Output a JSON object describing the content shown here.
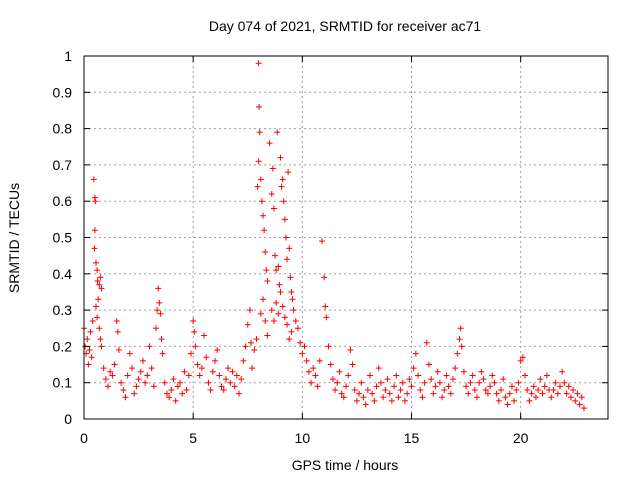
{
  "chart_data": {
    "type": "scatter",
    "title": "Day 074 of 2021, SRMTID for receiver ac71",
    "xlabel": "GPS time / hours",
    "ylabel": "SRMTID / TECUs",
    "xlim": [
      0,
      24
    ],
    "ylim": [
      0,
      1
    ],
    "x_ticks": [
      0,
      5,
      10,
      15,
      20
    ],
    "x_tick_labels": [
      "0",
      "5",
      "10",
      "15",
      "20"
    ],
    "y_ticks": [
      0,
      0.1,
      0.2,
      0.3,
      0.4,
      0.5,
      0.6,
      0.7,
      0.8,
      0.9,
      1
    ],
    "y_tick_labels": [
      "0",
      "0.1",
      "0.2",
      "0.3",
      "0.4",
      "0.5",
      "0.6",
      "0.7",
      "0.8",
      "0.9",
      "1"
    ],
    "grid": true,
    "marker": "+",
    "color": "#ff0000",
    "series": [
      {
        "name": "SRMTID",
        "points": [
          [
            0.0,
            0.25
          ],
          [
            0.05,
            0.2
          ],
          [
            0.1,
            0.18
          ],
          [
            0.15,
            0.22
          ],
          [
            0.2,
            0.15
          ],
          [
            0.25,
            0.19
          ],
          [
            0.3,
            0.24
          ],
          [
            0.35,
            0.17
          ],
          [
            0.4,
            0.27
          ],
          [
            0.45,
            0.66
          ],
          [
            0.5,
            0.61
          ],
          [
            0.52,
            0.6
          ],
          [
            0.5,
            0.52
          ],
          [
            0.48,
            0.47
          ],
          [
            0.55,
            0.43
          ],
          [
            0.6,
            0.41
          ],
          [
            0.62,
            0.38
          ],
          [
            0.7,
            0.37
          ],
          [
            0.75,
            0.39
          ],
          [
            0.8,
            0.36
          ],
          [
            0.55,
            0.31
          ],
          [
            0.6,
            0.28
          ],
          [
            0.65,
            0.33
          ],
          [
            0.7,
            0.25
          ],
          [
            0.75,
            0.22
          ],
          [
            0.8,
            0.2
          ],
          [
            0.9,
            0.14
          ],
          [
            1.0,
            0.11
          ],
          [
            1.1,
            0.09
          ],
          [
            1.2,
            0.13
          ],
          [
            1.3,
            0.12
          ],
          [
            1.4,
            0.15
          ],
          [
            1.5,
            0.27
          ],
          [
            1.55,
            0.24
          ],
          [
            1.6,
            0.19
          ],
          [
            1.7,
            0.1
          ],
          [
            1.8,
            0.08
          ],
          [
            1.9,
            0.06
          ],
          [
            2.0,
            0.12
          ],
          [
            2.1,
            0.18
          ],
          [
            2.2,
            0.14
          ],
          [
            2.3,
            0.07
          ],
          [
            2.4,
            0.09
          ],
          [
            2.5,
            0.11
          ],
          [
            2.6,
            0.13
          ],
          [
            2.7,
            0.16
          ],
          [
            2.8,
            0.1
          ],
          [
            2.9,
            0.12
          ],
          [
            3.0,
            0.2
          ],
          [
            3.1,
            0.14
          ],
          [
            3.2,
            0.09
          ],
          [
            3.3,
            0.25
          ],
          [
            3.35,
            0.3
          ],
          [
            3.4,
            0.36
          ],
          [
            3.45,
            0.32
          ],
          [
            3.5,
            0.29
          ],
          [
            3.55,
            0.22
          ],
          [
            3.6,
            0.18
          ],
          [
            3.7,
            0.1
          ],
          [
            3.8,
            0.07
          ],
          [
            3.9,
            0.06
          ],
          [
            4.0,
            0.08
          ],
          [
            4.1,
            0.11
          ],
          [
            4.2,
            0.05
          ],
          [
            4.3,
            0.09
          ],
          [
            4.4,
            0.1
          ],
          [
            4.5,
            0.07
          ],
          [
            4.6,
            0.13
          ],
          [
            4.7,
            0.08
          ],
          [
            4.8,
            0.12
          ],
          [
            4.9,
            0.18
          ],
          [
            5.0,
            0.27
          ],
          [
            5.05,
            0.24
          ],
          [
            5.1,
            0.2
          ],
          [
            5.2,
            0.15
          ],
          [
            5.3,
            0.12
          ],
          [
            5.4,
            0.14
          ],
          [
            5.5,
            0.23
          ],
          [
            5.6,
            0.17
          ],
          [
            5.7,
            0.1
          ],
          [
            5.8,
            0.08
          ],
          [
            5.9,
            0.13
          ],
          [
            6.0,
            0.16
          ],
          [
            6.1,
            0.19
          ],
          [
            6.2,
            0.12
          ],
          [
            6.3,
            0.09
          ],
          [
            6.4,
            0.08
          ],
          [
            6.5,
            0.11
          ],
          [
            6.6,
            0.14
          ],
          [
            6.7,
            0.1
          ],
          [
            6.8,
            0.13
          ],
          [
            6.9,
            0.09
          ],
          [
            7.0,
            0.12
          ],
          [
            7.1,
            0.07
          ],
          [
            7.2,
            0.11
          ],
          [
            7.3,
            0.16
          ],
          [
            7.4,
            0.2
          ],
          [
            7.5,
            0.26
          ],
          [
            7.6,
            0.3
          ],
          [
            7.65,
            0.21
          ],
          [
            7.7,
            0.14
          ],
          [
            7.8,
            0.19
          ],
          [
            7.9,
            0.22
          ],
          [
            7.95,
            0.64
          ],
          [
            8.0,
            0.71
          ],
          [
            8.0,
            0.98
          ],
          [
            8.02,
            0.86
          ],
          [
            8.05,
            0.79
          ],
          [
            8.1,
            0.66
          ],
          [
            8.15,
            0.6
          ],
          [
            8.2,
            0.56
          ],
          [
            8.25,
            0.52
          ],
          [
            8.3,
            0.46
          ],
          [
            8.35,
            0.41
          ],
          [
            8.4,
            0.38
          ],
          [
            8.1,
            0.29
          ],
          [
            8.2,
            0.33
          ],
          [
            8.3,
            0.27
          ],
          [
            8.4,
            0.23
          ],
          [
            8.5,
            0.76
          ],
          [
            8.6,
            0.62
          ],
          [
            8.65,
            0.69
          ],
          [
            8.7,
            0.58
          ],
          [
            8.75,
            0.45
          ],
          [
            8.8,
            0.41
          ],
          [
            8.85,
            0.79
          ],
          [
            8.9,
            0.42
          ],
          [
            8.95,
            0.37
          ],
          [
            9.0,
            0.72
          ],
          [
            9.05,
            0.64
          ],
          [
            9.1,
            0.66
          ],
          [
            9.15,
            0.6
          ],
          [
            9.2,
            0.55
          ],
          [
            9.25,
            0.5
          ],
          [
            9.3,
            0.44
          ],
          [
            9.35,
            0.68
          ],
          [
            9.4,
            0.47
          ],
          [
            9.45,
            0.39
          ],
          [
            9.5,
            0.35
          ],
          [
            9.55,
            0.33
          ],
          [
            8.6,
            0.3
          ],
          [
            8.7,
            0.27
          ],
          [
            8.8,
            0.32
          ],
          [
            8.9,
            0.29
          ],
          [
            9.0,
            0.35
          ],
          [
            9.1,
            0.31
          ],
          [
            9.2,
            0.28
          ],
          [
            9.3,
            0.26
          ],
          [
            9.4,
            0.22
          ],
          [
            9.5,
            0.24
          ],
          [
            9.6,
            0.3
          ],
          [
            9.7,
            0.27
          ],
          [
            9.8,
            0.25
          ],
          [
            9.9,
            0.21
          ],
          [
            10.0,
            0.18
          ],
          [
            10.1,
            0.2
          ],
          [
            10.2,
            0.16
          ],
          [
            10.3,
            0.13
          ],
          [
            10.4,
            0.1
          ],
          [
            10.5,
            0.14
          ],
          [
            10.6,
            0.12
          ],
          [
            10.7,
            0.09
          ],
          [
            10.8,
            0.16
          ],
          [
            10.9,
            0.49
          ],
          [
            11.0,
            0.39
          ],
          [
            11.05,
            0.31
          ],
          [
            11.1,
            0.28
          ],
          [
            11.2,
            0.2
          ],
          [
            11.3,
            0.15
          ],
          [
            11.4,
            0.11
          ],
          [
            11.5,
            0.08
          ],
          [
            11.6,
            0.1
          ],
          [
            11.7,
            0.13
          ],
          [
            11.8,
            0.07
          ],
          [
            11.9,
            0.06
          ],
          [
            12.0,
            0.09
          ],
          [
            12.1,
            0.12
          ],
          [
            12.2,
            0.19
          ],
          [
            12.3,
            0.15
          ],
          [
            12.4,
            0.08
          ],
          [
            12.5,
            0.05
          ],
          [
            12.6,
            0.07
          ],
          [
            12.7,
            0.1
          ],
          [
            12.8,
            0.06
          ],
          [
            12.9,
            0.04
          ],
          [
            13.0,
            0.08
          ],
          [
            13.1,
            0.12
          ],
          [
            13.2,
            0.07
          ],
          [
            13.3,
            0.05
          ],
          [
            13.4,
            0.09
          ],
          [
            13.5,
            0.14
          ],
          [
            13.6,
            0.1
          ],
          [
            13.7,
            0.06
          ],
          [
            13.8,
            0.08
          ],
          [
            13.9,
            0.11
          ],
          [
            14.0,
            0.07
          ],
          [
            14.1,
            0.05
          ],
          [
            14.2,
            0.09
          ],
          [
            14.3,
            0.12
          ],
          [
            14.4,
            0.06
          ],
          [
            14.5,
            0.08
          ],
          [
            14.6,
            0.1
          ],
          [
            14.7,
            0.05
          ],
          [
            14.8,
            0.07
          ],
          [
            14.9,
            0.11
          ],
          [
            15.0,
            0.09
          ],
          [
            15.1,
            0.14
          ],
          [
            15.2,
            0.18
          ],
          [
            15.3,
            0.12
          ],
          [
            15.4,
            0.08
          ],
          [
            15.5,
            0.06
          ],
          [
            15.6,
            0.1
          ],
          [
            15.7,
            0.21
          ],
          [
            15.8,
            0.15
          ],
          [
            15.9,
            0.11
          ],
          [
            16.0,
            0.07
          ],
          [
            16.1,
            0.09
          ],
          [
            16.2,
            0.13
          ],
          [
            16.3,
            0.1
          ],
          [
            16.4,
            0.06
          ],
          [
            16.5,
            0.08
          ],
          [
            16.6,
            0.12
          ],
          [
            16.7,
            0.09
          ],
          [
            16.8,
            0.07
          ],
          [
            16.9,
            0.11
          ],
          [
            17.0,
            0.14
          ],
          [
            17.1,
            0.18
          ],
          [
            17.2,
            0.22
          ],
          [
            17.25,
            0.25
          ],
          [
            17.3,
            0.2
          ],
          [
            17.4,
            0.13
          ],
          [
            17.5,
            0.09
          ],
          [
            17.6,
            0.07
          ],
          [
            17.7,
            0.1
          ],
          [
            17.8,
            0.12
          ],
          [
            17.9,
            0.08
          ],
          [
            18.0,
            0.06
          ],
          [
            18.1,
            0.1
          ],
          [
            18.2,
            0.13
          ],
          [
            18.3,
            0.11
          ],
          [
            18.4,
            0.08
          ],
          [
            18.5,
            0.07
          ],
          [
            18.6,
            0.09
          ],
          [
            18.7,
            0.12
          ],
          [
            18.8,
            0.1
          ],
          [
            18.9,
            0.07
          ],
          [
            19.0,
            0.05
          ],
          [
            19.1,
            0.08
          ],
          [
            19.2,
            0.11
          ],
          [
            19.3,
            0.06
          ],
          [
            19.4,
            0.04
          ],
          [
            19.5,
            0.07
          ],
          [
            19.6,
            0.09
          ],
          [
            19.7,
            0.05
          ],
          [
            19.8,
            0.08
          ],
          [
            19.9,
            0.1
          ],
          [
            20.0,
            0.16
          ],
          [
            20.1,
            0.17
          ],
          [
            20.2,
            0.12
          ],
          [
            20.3,
            0.08
          ],
          [
            20.4,
            0.05
          ],
          [
            20.5,
            0.07
          ],
          [
            20.6,
            0.09
          ],
          [
            20.7,
            0.06
          ],
          [
            20.8,
            0.08
          ],
          [
            20.9,
            0.11
          ],
          [
            21.0,
            0.07
          ],
          [
            21.1,
            0.09
          ],
          [
            21.2,
            0.12
          ],
          [
            21.3,
            0.08
          ],
          [
            21.4,
            0.06
          ],
          [
            21.5,
            0.08
          ],
          [
            21.6,
            0.1
          ],
          [
            21.7,
            0.07
          ],
          [
            21.8,
            0.09
          ],
          [
            21.9,
            0.13
          ],
          [
            22.0,
            0.1
          ],
          [
            22.1,
            0.07
          ],
          [
            22.2,
            0.09
          ],
          [
            22.3,
            0.06
          ],
          [
            22.4,
            0.08
          ],
          [
            22.5,
            0.05
          ],
          [
            22.6,
            0.07
          ],
          [
            22.7,
            0.04
          ],
          [
            22.8,
            0.06
          ],
          [
            22.9,
            0.03
          ]
        ]
      }
    ]
  }
}
